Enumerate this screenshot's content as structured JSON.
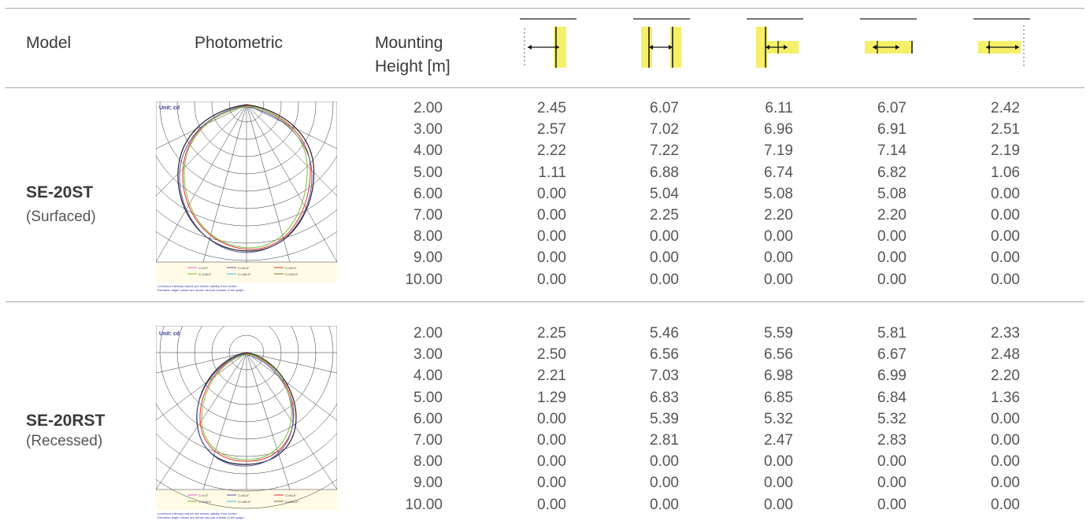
{
  "headers": {
    "model": "Model",
    "photometric": "Photometric",
    "mounting_line1": "Mounting",
    "mounting_line2": "Height [m]"
  },
  "diagram_icons": [
    "wall-left-spacing-icon",
    "double-sided-spacing-icon",
    "wall-left-offset-spacing-icon",
    "double-offset-spacing-icon",
    "wall-right-offset-spacing-icon"
  ],
  "colors": {
    "highlight": "#f5ef6a",
    "rule": "#a9a9a9"
  },
  "photometric_text": {
    "unit": "Unit: cd",
    "caption_line1": "Luminous intensity values are shown radially from centre.",
    "caption_line2": "Elevation angle values are shown around outside of the graph.",
    "legend": [
      "C=0.0°",
      "C=45.0°",
      "C=90.0°",
      "C=135.0°",
      "C=180.0°",
      "C=225.0°",
      "C=270.0°",
      "C=315.0°"
    ]
  },
  "products": [
    {
      "name": "SE-20ST",
      "type": "(Surfaced)",
      "rows": [
        {
          "h": "2.00",
          "v": [
            "2.45",
            "6.07",
            "6.11",
            "6.07",
            "2.42"
          ]
        },
        {
          "h": "3.00",
          "v": [
            "2.57",
            "7.02",
            "6.96",
            "6.91",
            "2.51"
          ]
        },
        {
          "h": "4.00",
          "v": [
            "2.22",
            "7.22",
            "7.19",
            "7.14",
            "2.19"
          ]
        },
        {
          "h": "5.00",
          "v": [
            "1.11",
            "6.88",
            "6.74",
            "6.82",
            "1.06"
          ]
        },
        {
          "h": "6.00",
          "v": [
            "0.00",
            "5.04",
            "5.08",
            "5.08",
            "0.00"
          ]
        },
        {
          "h": "7.00",
          "v": [
            "0.00",
            "2.25",
            "2.20",
            "2.20",
            "0.00"
          ]
        },
        {
          "h": "8.00",
          "v": [
            "0.00",
            "0.00",
            "0.00",
            "0.00",
            "0.00"
          ]
        },
        {
          "h": "9.00",
          "v": [
            "0.00",
            "0.00",
            "0.00",
            "0.00",
            "0.00"
          ]
        },
        {
          "h": "10.00",
          "v": [
            "0.00",
            "0.00",
            "0.00",
            "0.00",
            "0.00"
          ]
        }
      ]
    },
    {
      "name": "SE-20RST",
      "type": "(Recessed)",
      "rows": [
        {
          "h": "2.00",
          "v": [
            "2.25",
            "5.46",
            "5.59",
            "5.81",
            "2.33"
          ]
        },
        {
          "h": "3.00",
          "v": [
            "2.50",
            "6.56",
            "6.56",
            "6.67",
            "2.48"
          ]
        },
        {
          "h": "4.00",
          "v": [
            "2.21",
            "7.03",
            "6.98",
            "6.99",
            "2.20"
          ]
        },
        {
          "h": "5.00",
          "v": [
            "1.29",
            "6.83",
            "6.85",
            "6.84",
            "1.36"
          ]
        },
        {
          "h": "6.00",
          "v": [
            "0.00",
            "5.39",
            "5.32",
            "5.32",
            "0.00"
          ]
        },
        {
          "h": "7.00",
          "v": [
            "0.00",
            "2.81",
            "2.47",
            "2.83",
            "0.00"
          ]
        },
        {
          "h": "8.00",
          "v": [
            "0.00",
            "0.00",
            "0.00",
            "0.00",
            "0.00"
          ]
        },
        {
          "h": "9.00",
          "v": [
            "0.00",
            "0.00",
            "0.00",
            "0.00",
            "0.00"
          ]
        },
        {
          "h": "10.00",
          "v": [
            "0.00",
            "0.00",
            "0.00",
            "0.00",
            "0.00"
          ]
        }
      ]
    }
  ]
}
